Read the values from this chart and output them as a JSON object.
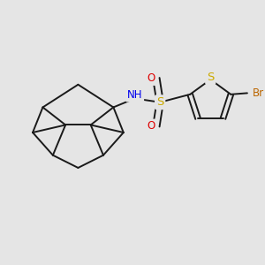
{
  "background_color": "#e5e5e5",
  "bond_color": "#1a1a1a",
  "N_color": "#0000ee",
  "S_color": "#ccaa00",
  "O_color": "#dd0000",
  "Br_color": "#bb6600",
  "line_width": 1.4,
  "figsize": [
    3.0,
    3.0
  ],
  "dpi": 100,
  "xlim": [
    0,
    10
  ],
  "ylim": [
    0,
    10
  ]
}
